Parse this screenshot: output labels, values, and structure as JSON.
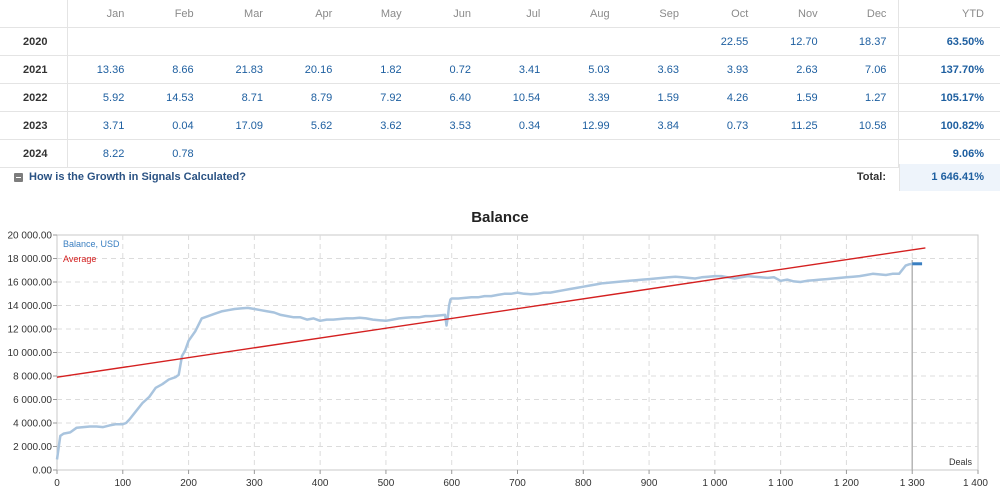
{
  "growth_table": {
    "months": [
      "Jan",
      "Feb",
      "Mar",
      "Apr",
      "May",
      "Jun",
      "Jul",
      "Aug",
      "Sep",
      "Oct",
      "Nov",
      "Dec"
    ],
    "ytd_label": "YTD",
    "rows": [
      {
        "year": "2020",
        "values": [
          "",
          "",
          "",
          "",
          "",
          "",
          "",
          "",
          "",
          "22.55",
          "12.70",
          "18.37"
        ],
        "ytd": "63.50%"
      },
      {
        "year": "2021",
        "values": [
          "13.36",
          "8.66",
          "21.83",
          "20.16",
          "1.82",
          "0.72",
          "3.41",
          "5.03",
          "3.63",
          "3.93",
          "2.63",
          "7.06"
        ],
        "ytd": "137.70%"
      },
      {
        "year": "2022",
        "values": [
          "5.92",
          "14.53",
          "8.71",
          "8.79",
          "7.92",
          "6.40",
          "10.54",
          "3.39",
          "1.59",
          "4.26",
          "1.59",
          "1.27"
        ],
        "ytd": "105.17%"
      },
      {
        "year": "2023",
        "values": [
          "3.71",
          "0.04",
          "17.09",
          "5.62",
          "3.62",
          "3.53",
          "0.34",
          "12.99",
          "3.84",
          "0.73",
          "11.25",
          "10.58"
        ],
        "ytd": "100.82%"
      },
      {
        "year": "2024",
        "values": [
          "8.22",
          "0.78",
          "",
          "",
          "",
          "",
          "",
          "",
          "",
          "",
          "",
          ""
        ],
        "ytd": "9.06%"
      }
    ],
    "help_link": "How is the Growth in Signals Calculated?",
    "total_label": "Total:",
    "total_value": "1 646.41%"
  },
  "chart_data": {
    "type": "line",
    "title": "Balance",
    "xlabel": "Deals",
    "ylabel": "",
    "xlim": [
      0,
      1400
    ],
    "ylim": [
      0,
      20000
    ],
    "x_ticks": [
      "0",
      "100",
      "200",
      "300",
      "400",
      "500",
      "600",
      "700",
      "800",
      "900",
      "1 000",
      "1 100",
      "1 200",
      "1 300",
      "1 400"
    ],
    "y_ticks": [
      "0.00",
      "2 000.00",
      "4 000.00",
      "6 000.00",
      "8 000.00",
      "10 000.00",
      "12 000.00",
      "14 000.00",
      "16 000.00",
      "18 000.00",
      "20 000.00"
    ],
    "grid": true,
    "legend_position": "top-left",
    "current_marker_x": 1300,
    "series": [
      {
        "name": "Balance, USD",
        "color": "#a9c4de",
        "x": [
          0,
          5,
          10,
          20,
          30,
          40,
          50,
          60,
          70,
          80,
          90,
          100,
          105,
          110,
          120,
          130,
          140,
          150,
          160,
          170,
          180,
          185,
          190,
          195,
          200,
          210,
          220,
          230,
          240,
          250,
          260,
          270,
          280,
          290,
          300,
          310,
          320,
          330,
          340,
          350,
          360,
          370,
          380,
          390,
          400,
          410,
          420,
          430,
          440,
          450,
          460,
          470,
          480,
          490,
          500,
          510,
          520,
          530,
          540,
          550,
          560,
          570,
          580,
          590,
          592,
          594,
          596,
          598,
          600,
          610,
          620,
          630,
          640,
          650,
          660,
          670,
          680,
          690,
          700,
          710,
          720,
          730,
          740,
          750,
          760,
          770,
          780,
          790,
          800,
          810,
          820,
          830,
          840,
          850,
          860,
          870,
          880,
          890,
          900,
          910,
          920,
          930,
          940,
          950,
          960,
          970,
          980,
          990,
          1000,
          1010,
          1020,
          1030,
          1040,
          1050,
          1060,
          1070,
          1080,
          1090,
          1100,
          1110,
          1120,
          1130,
          1140,
          1150,
          1160,
          1170,
          1180,
          1190,
          1200,
          1210,
          1220,
          1230,
          1240,
          1250,
          1260,
          1270,
          1280,
          1290,
          1295,
          1300
        ],
        "values": [
          900,
          2900,
          3100,
          3200,
          3600,
          3650,
          3700,
          3700,
          3650,
          3800,
          3900,
          3900,
          4000,
          4300,
          5000,
          5700,
          6200,
          7000,
          7300,
          7700,
          7900,
          8100,
          9700,
          10200,
          11000,
          11800,
          12900,
          13100,
          13300,
          13500,
          13600,
          13700,
          13750,
          13800,
          13700,
          13600,
          13500,
          13400,
          13200,
          13100,
          13000,
          13000,
          12800,
          12900,
          12700,
          12800,
          12800,
          12850,
          12900,
          12900,
          12950,
          12900,
          12800,
          12750,
          12700,
          12800,
          12900,
          12950,
          13000,
          13000,
          13100,
          13100,
          13150,
          13200,
          12300,
          13000,
          14000,
          14500,
          14600,
          14600,
          14650,
          14700,
          14700,
          14800,
          14800,
          14900,
          15000,
          15000,
          15100,
          15000,
          14950,
          15000,
          15100,
          15100,
          15200,
          15300,
          15400,
          15500,
          15600,
          15700,
          15800,
          15900,
          15950,
          16000,
          16050,
          16100,
          16150,
          16200,
          16250,
          16300,
          16350,
          16400,
          16450,
          16400,
          16350,
          16300,
          16400,
          16450,
          16500,
          16500,
          16400,
          16300,
          16400,
          16500,
          16450,
          16400,
          16350,
          16400,
          16100,
          16200,
          16050,
          16000,
          16100,
          16150,
          16200,
          16250,
          16300,
          16350,
          16400,
          16450,
          16500,
          16600,
          16700,
          16650,
          16600,
          16700,
          16700,
          17400,
          17500,
          17550
        ]
      },
      {
        "name": "Average",
        "color": "#d42020",
        "x": [
          0,
          1320
        ],
        "values": [
          7900,
          18900
        ]
      }
    ],
    "current_value_x": [
      1300,
      1315
    ],
    "current_value_y": 17550
  }
}
